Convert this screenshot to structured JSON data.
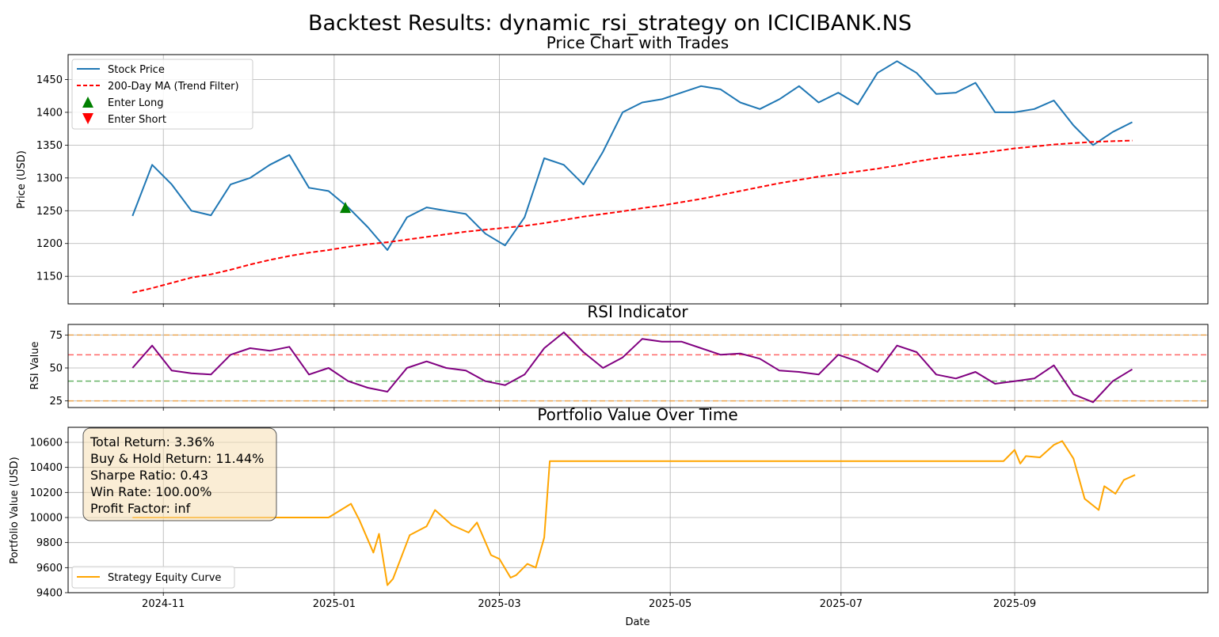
{
  "figure": {
    "title": "Backtest Results: dynamic_rsi_strategy on ICICIBANK.NS",
    "xlabel": "Date",
    "x_ticks": [
      "2024-11",
      "2025-01",
      "2025-03",
      "2025-05",
      "2025-07",
      "2025-09"
    ]
  },
  "chart_data": [
    {
      "type": "line",
      "title": "Price Chart with Trades",
      "ylabel": "Price (USD)",
      "ylim": [
        1108,
        1488
      ],
      "y_ticks": [
        1150,
        1200,
        1250,
        1300,
        1350,
        1400,
        1450
      ],
      "grid": true,
      "legend_position": "top-left",
      "x": [
        "2024-10-21",
        "2024-10-28",
        "2024-11-04",
        "2024-11-11",
        "2024-11-18",
        "2024-11-25",
        "2024-12-02",
        "2024-12-09",
        "2024-12-16",
        "2024-12-23",
        "2024-12-30",
        "2025-01-06",
        "2025-01-13",
        "2025-01-20",
        "2025-01-27",
        "2025-02-03",
        "2025-02-10",
        "2025-02-17",
        "2025-02-24",
        "2025-03-03",
        "2025-03-10",
        "2025-03-17",
        "2025-03-24",
        "2025-03-31",
        "2025-04-07",
        "2025-04-14",
        "2025-04-21",
        "2025-04-28",
        "2025-05-05",
        "2025-05-12",
        "2025-05-19",
        "2025-05-26",
        "2025-06-02",
        "2025-06-09",
        "2025-06-16",
        "2025-06-23",
        "2025-06-30",
        "2025-07-07",
        "2025-07-14",
        "2025-07-21",
        "2025-07-28",
        "2025-08-04",
        "2025-08-11",
        "2025-08-18",
        "2025-08-25",
        "2025-09-01",
        "2025-09-08",
        "2025-09-15",
        "2025-09-22",
        "2025-09-29",
        "2025-10-06",
        "2025-10-13"
      ],
      "series": [
        {
          "name": "Stock Price",
          "color": "#1f77b4",
          "style": "solid",
          "values": [
            1242,
            1320,
            1290,
            1250,
            1243,
            1290,
            1300,
            1320,
            1335,
            1285,
            1280,
            1255,
            1225,
            1190,
            1240,
            1255,
            1250,
            1245,
            1215,
            1197,
            1240,
            1330,
            1320,
            1290,
            1340,
            1400,
            1415,
            1420,
            1430,
            1440,
            1435,
            1415,
            1405,
            1420,
            1440,
            1415,
            1430,
            1412,
            1460,
            1478,
            1460,
            1428,
            1430,
            1445,
            1400,
            1400,
            1405,
            1418,
            1380,
            1350,
            1370,
            1385
          ]
        },
        {
          "name": "200-Day MA (Trend Filter)",
          "color": "#ff0000",
          "style": "dashed",
          "values": [
            1125,
            1132,
            1140,
            1148,
            1153,
            1160,
            1168,
            1175,
            1181,
            1186,
            1190,
            1195,
            1199,
            1202,
            1206,
            1210,
            1214,
            1218,
            1221,
            1224,
            1227,
            1231,
            1236,
            1241,
            1245,
            1249,
            1254,
            1258,
            1263,
            1268,
            1274,
            1280,
            1286,
            1292,
            1297,
            1302,
            1306,
            1310,
            1314,
            1319,
            1325,
            1330,
            1334,
            1337,
            1341,
            1345,
            1348,
            1351,
            1353,
            1355,
            1356,
            1357
          ]
        }
      ],
      "markers": [
        {
          "name": "Enter Long",
          "color": "#008000",
          "symbol": "triangle-up",
          "x": "2025-01-05",
          "y": 1255
        },
        {
          "name": "Enter Short",
          "color": "#ff0000",
          "symbol": "triangle-down",
          "points": []
        }
      ]
    },
    {
      "type": "line",
      "title": "RSI Indicator",
      "ylabel": "RSI Value",
      "ylim": [
        20,
        83
      ],
      "y_ticks": [
        25,
        50,
        75
      ],
      "grid": true,
      "x": [
        "2024-10-21",
        "2024-10-28",
        "2024-11-04",
        "2024-11-11",
        "2024-11-18",
        "2024-11-25",
        "2024-12-02",
        "2024-12-09",
        "2024-12-16",
        "2024-12-23",
        "2024-12-30",
        "2025-01-06",
        "2025-01-13",
        "2025-01-20",
        "2025-01-27",
        "2025-02-03",
        "2025-02-10",
        "2025-02-17",
        "2025-02-24",
        "2025-03-03",
        "2025-03-10",
        "2025-03-17",
        "2025-03-24",
        "2025-03-31",
        "2025-04-07",
        "2025-04-14",
        "2025-04-21",
        "2025-04-28",
        "2025-05-05",
        "2025-05-12",
        "2025-05-19",
        "2025-05-26",
        "2025-06-02",
        "2025-06-09",
        "2025-06-16",
        "2025-06-23",
        "2025-06-30",
        "2025-07-07",
        "2025-07-14",
        "2025-07-21",
        "2025-07-28",
        "2025-08-04",
        "2025-08-11",
        "2025-08-18",
        "2025-08-25",
        "2025-09-01",
        "2025-09-08",
        "2025-09-15",
        "2025-09-22",
        "2025-09-29",
        "2025-10-06",
        "2025-10-13"
      ],
      "series": [
        {
          "name": "RSI",
          "color": "#800080",
          "style": "solid",
          "values": [
            50,
            67,
            48,
            46,
            45,
            60,
            65,
            63,
            66,
            45,
            50,
            40,
            35,
            32,
            50,
            55,
            50,
            48,
            40,
            37,
            45,
            65,
            77,
            62,
            50,
            58,
            72,
            70,
            70,
            65,
            60,
            61,
            57,
            48,
            47,
            45,
            60,
            55,
            47,
            67,
            62,
            45,
            42,
            47,
            38,
            40,
            42,
            52,
            30,
            24,
            40,
            49
          ]
        }
      ],
      "reference_lines": [
        {
          "y": 75,
          "color": "#ff8c00",
          "style": "dashed"
        },
        {
          "y": 60,
          "color": "#ff0000",
          "style": "dashed"
        },
        {
          "y": 40,
          "color": "#008000",
          "style": "dashed"
        },
        {
          "y": 25,
          "color": "#ff8c00",
          "style": "dashed"
        }
      ]
    },
    {
      "type": "line",
      "title": "Portfolio Value Over Time",
      "ylabel": "Portfolio Value (USD)",
      "xlabel": "Date",
      "ylim": [
        9400,
        10720
      ],
      "y_ticks": [
        9400,
        9600,
        9800,
        10000,
        10200,
        10400,
        10600
      ],
      "grid": true,
      "legend_position": "bottom-left",
      "x": [
        "2024-10-21",
        "2024-12-30",
        "2025-01-07",
        "2025-01-10",
        "2025-01-15",
        "2025-01-17",
        "2025-01-20",
        "2025-01-22",
        "2025-01-28",
        "2025-02-03",
        "2025-02-06",
        "2025-02-12",
        "2025-02-18",
        "2025-02-21",
        "2025-02-26",
        "2025-03-01",
        "2025-03-05",
        "2025-03-07",
        "2025-03-11",
        "2025-03-14",
        "2025-03-17",
        "2025-03-19",
        "2025-08-28",
        "2025-09-01",
        "2025-09-03",
        "2025-09-05",
        "2025-09-10",
        "2025-09-15",
        "2025-09-18",
        "2025-09-22",
        "2025-09-26",
        "2025-10-01",
        "2025-10-03",
        "2025-10-07",
        "2025-10-10",
        "2025-10-14"
      ],
      "series": [
        {
          "name": "Strategy Equity Curve",
          "color": "#ffa500",
          "style": "solid",
          "values": [
            10000,
            10000,
            10110,
            9980,
            9720,
            9870,
            9460,
            9510,
            9860,
            9930,
            10060,
            9940,
            9880,
            9960,
            9700,
            9670,
            9520,
            9540,
            9630,
            9600,
            9840,
            10450,
            10450,
            10540,
            10430,
            10490,
            10480,
            10580,
            10610,
            10470,
            10150,
            10060,
            10250,
            10190,
            10300,
            10340
          ]
        }
      ]
    }
  ],
  "stats_box": {
    "line1": "Total Return: 3.36%",
    "line2": "Buy & Hold Return: 11.44%",
    "line3": "Sharpe Ratio: 0.43",
    "line4": "Win Rate: 100.00%",
    "line5": "Profit Factor: inf",
    "fill_color": "#f5deb3"
  }
}
